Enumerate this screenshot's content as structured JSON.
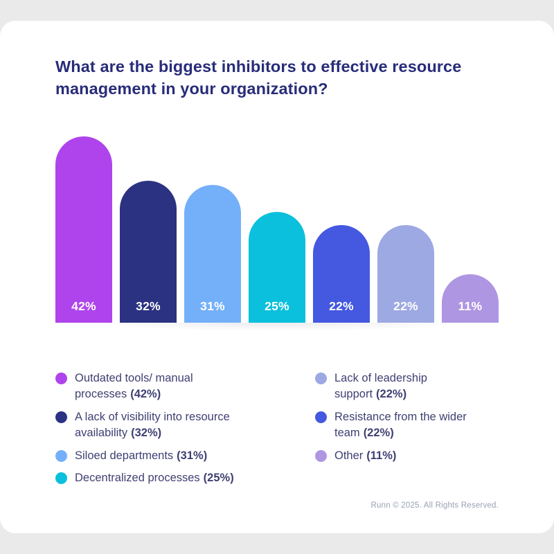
{
  "header": {
    "title": "What are the biggest inhibitors to effective resource\nmanagement in your organization?"
  },
  "chart_data": {
    "type": "bar",
    "title": "What are the biggest inhibitors to effective resource management in your organization?",
    "categories": [
      "Outdated tools/ manual processes",
      "A lack of visibility into resource availability",
      "Siloed departments",
      "Decentralized processes",
      "Resistance from the wider team",
      "Lack of leadership support",
      "Other"
    ],
    "values": [
      42,
      32,
      31,
      25,
      22,
      22,
      11
    ],
    "bar_labels": [
      "42%",
      "32%",
      "31%",
      "25%",
      "22%",
      "22%",
      "11%"
    ],
    "colors": [
      "#af44ec",
      "#2b3282",
      "#74b0fa",
      "#0bc0dc",
      "#4458e0",
      "#9da9e3",
      "#ae96e2"
    ],
    "xlabel": "",
    "ylabel": "",
    "ylim": [
      0,
      42
    ],
    "grid": false,
    "legend_position": "below",
    "bar_label_color": "#ffffff"
  },
  "legend": {
    "columns": [
      {
        "items": [
          {
            "text": "Outdated tools/ manual\nprocesses",
            "pct": "(42%)",
            "color": "#af44ec"
          },
          {
            "text": "A lack of visibility into resource\navailability",
            "pct": "(32%)",
            "color": "#2b3282"
          },
          {
            "text": "Siloed departments",
            "pct": "(31%)",
            "color": "#74b0fa"
          },
          {
            "text": "Decentralized processes",
            "pct": "(25%)",
            "color": "#0bc0dc"
          }
        ]
      },
      {
        "items": [
          {
            "text": "Lack of leadership\nsupport",
            "pct": "(22%)",
            "color": "#9da9e3"
          },
          {
            "text": "Resistance from the wider\nteam",
            "pct": "(22%)",
            "color": "#4458e0"
          },
          {
            "text": "Other",
            "pct": "(11%)",
            "color": "#ae96e2"
          }
        ]
      }
    ]
  },
  "footer": {
    "copyright": "Runn © 2025. All Rights Reserved."
  }
}
